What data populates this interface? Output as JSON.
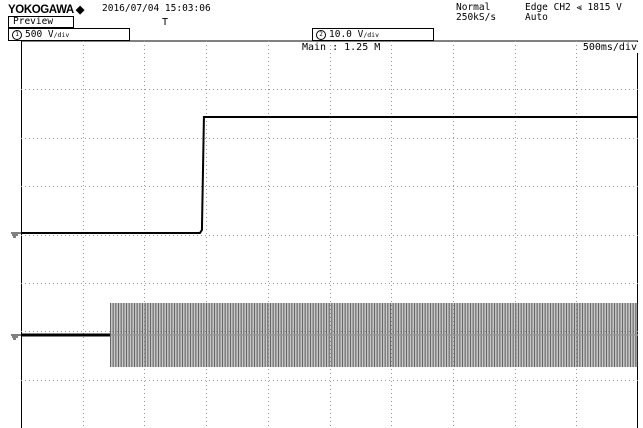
{
  "header": {
    "brand": "YOKOGAWA",
    "datetime": "2016/07/04 15:03:06",
    "mode": "Preview",
    "acq_mode": "Normal",
    "sample_rate": "250kS/s",
    "trigger": "Edge CH2 ⪡ 1815 V",
    "trigger_mode": "Auto",
    "trigger_indicator": "T"
  },
  "channels": [
    {
      "id": "1",
      "scale": "500 V",
      "unit": "/div"
    },
    {
      "id": "2",
      "scale": "10.0 V",
      "unit": "/div"
    }
  ],
  "display": {
    "main_label": "Main : 1.25 M",
    "timebase": "500ms/div",
    "step_at_div": 2.9,
    "burst_start_div": 1.45
  },
  "colors": {
    "trace": "#000000",
    "grid": "#9a9a9a",
    "background": "#ffffff"
  }
}
